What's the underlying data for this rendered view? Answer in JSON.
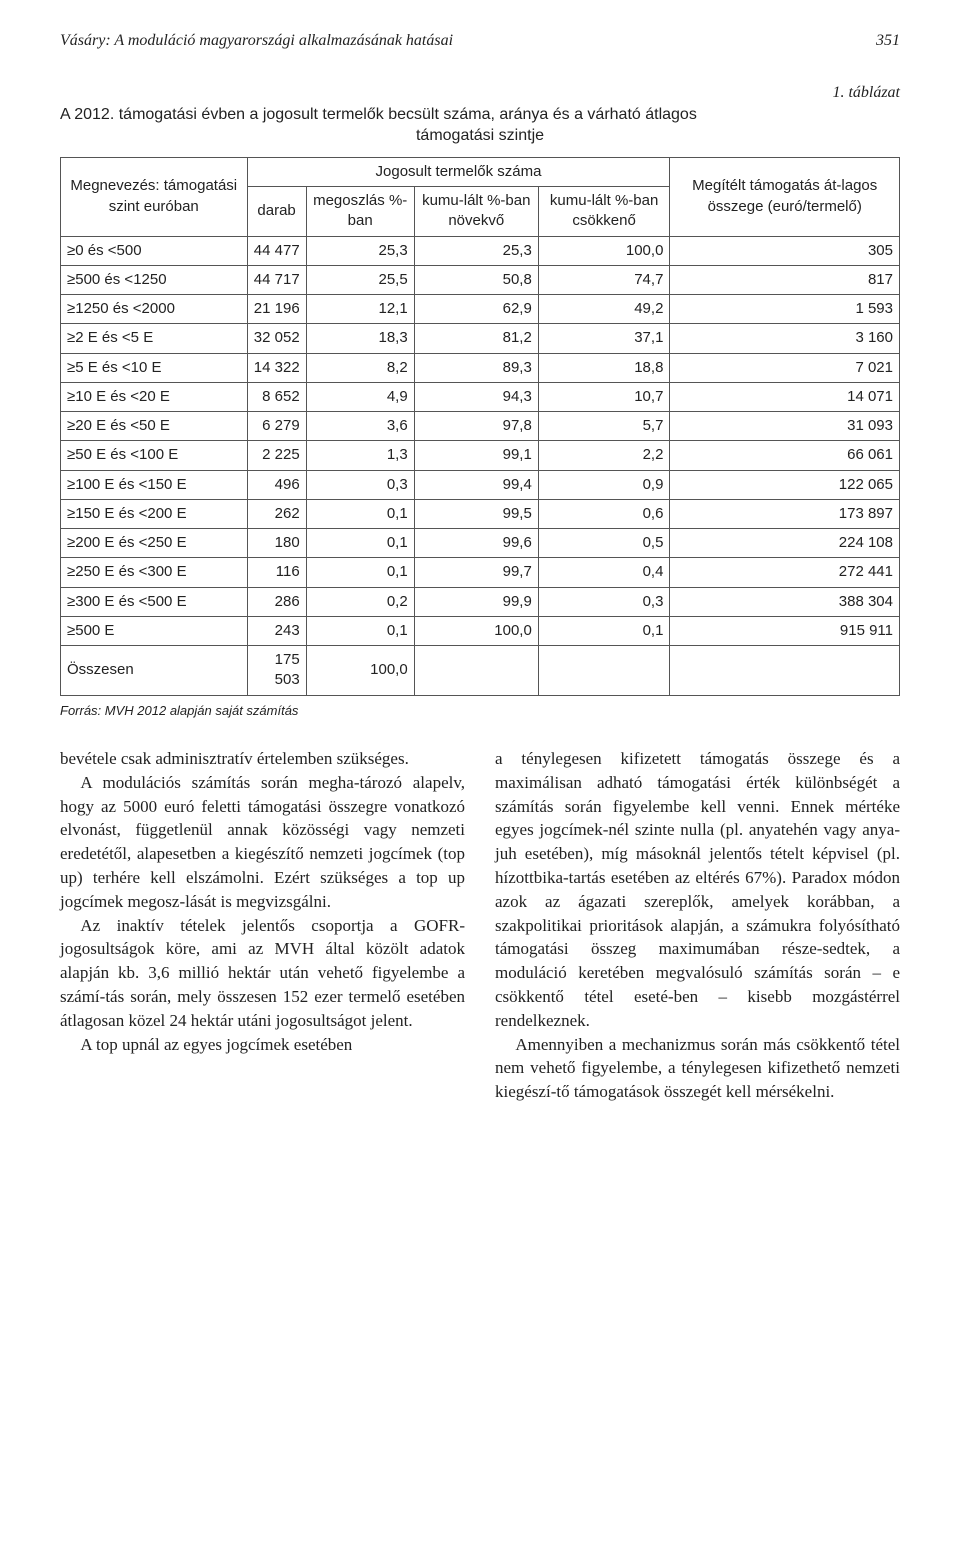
{
  "header": {
    "running_title": "Vásáry: A moduláció magyarországi alkalmazásának hatásai",
    "page_number": "351"
  },
  "table": {
    "label": "1. táblázat",
    "title_line1": "A 2012. támogatási évben a jogosult termelők becsült száma, aránya és a várható átlagos",
    "title_line2": "támogatási szintje",
    "head": {
      "col1": "Megnevezés: támogatási szint euróban",
      "group": "Jogosult termelők száma",
      "sub_darab": "darab",
      "sub_megoszlas": "megoszlás %-ban",
      "sub_kum_novekvo": "kumu-lált %-ban növekvő",
      "sub_kum_csokkeno": "kumu-lált %-ban csökkenő",
      "col_last": "Megítélt támogatás át-lagos összege (euró/termelő)"
    },
    "rows": [
      {
        "label": "≥0 és <500",
        "darab": "44 477",
        "pct": "25,3",
        "kumn": "25,3",
        "kumc": "100,0",
        "avg": "305"
      },
      {
        "label": "≥500 és <1250",
        "darab": "44 717",
        "pct": "25,5",
        "kumn": "50,8",
        "kumc": "74,7",
        "avg": "817"
      },
      {
        "label": "≥1250 és <2000",
        "darab": "21 196",
        "pct": "12,1",
        "kumn": "62,9",
        "kumc": "49,2",
        "avg": "1 593"
      },
      {
        "label": "≥2 E és <5 E",
        "darab": "32 052",
        "pct": "18,3",
        "kumn": "81,2",
        "kumc": "37,1",
        "avg": "3 160"
      },
      {
        "label": "≥5 E és <10 E",
        "darab": "14 322",
        "pct": "8,2",
        "kumn": "89,3",
        "kumc": "18,8",
        "avg": "7 021"
      },
      {
        "label": "≥10 E és <20 E",
        "darab": "8 652",
        "pct": "4,9",
        "kumn": "94,3",
        "kumc": "10,7",
        "avg": "14 071"
      },
      {
        "label": "≥20 E és <50 E",
        "darab": "6 279",
        "pct": "3,6",
        "kumn": "97,8",
        "kumc": "5,7",
        "avg": "31 093"
      },
      {
        "label": "≥50 E és <100 E",
        "darab": "2 225",
        "pct": "1,3",
        "kumn": "99,1",
        "kumc": "2,2",
        "avg": "66 061"
      },
      {
        "label": "≥100 E és <150 E",
        "darab": "496",
        "pct": "0,3",
        "kumn": "99,4",
        "kumc": "0,9",
        "avg": "122 065"
      },
      {
        "label": "≥150 E és <200 E",
        "darab": "262",
        "pct": "0,1",
        "kumn": "99,5",
        "kumc": "0,6",
        "avg": "173 897"
      },
      {
        "label": "≥200 E és <250 E",
        "darab": "180",
        "pct": "0,1",
        "kumn": "99,6",
        "kumc": "0,5",
        "avg": "224 108"
      },
      {
        "label": "≥250 E és <300 E",
        "darab": "116",
        "pct": "0,1",
        "kumn": "99,7",
        "kumc": "0,4",
        "avg": "272 441"
      },
      {
        "label": "≥300 E és <500 E",
        "darab": "286",
        "pct": "0,2",
        "kumn": "99,9",
        "kumc": "0,3",
        "avg": "388 304"
      },
      {
        "label": "≥500 E",
        "darab": "243",
        "pct": "0,1",
        "kumn": "100,0",
        "kumc": "0,1",
        "avg": "915 911"
      }
    ],
    "total": {
      "label": "Összesen",
      "darab": "175 503",
      "pct": "100,0",
      "kumn": "",
      "kumc": "",
      "avg": ""
    },
    "source": "Forrás: MVH 2012 alapján saját számítás"
  },
  "body": {
    "left": {
      "p1": "bevétele csak adminisztratív értelemben szükséges.",
      "p2": "A modulációs számítás során megha-tározó alapelv, hogy az 5000 euró feletti támogatási összegre vonatkozó elvonást, függetlenül annak közösségi vagy nemzeti eredetétől, alapesetben a kiegészítő nemzeti jogcímek (top up) terhére kell elszámolni. Ezért szükséges a top up jogcímek megosz-lását is megvizsgálni.",
      "p3": "Az inaktív tételek jelentős csoportja a GOFR-jogosultságok köre, ami az MVH által közölt adatok alapján kb. 3,6 millió hektár után vehető figyelembe a számí-tás során, mely összesen 152 ezer termelő esetében átlagosan közel 24 hektár utáni jogosultságot jelent.",
      "p4": "A top upnál az egyes jogcímek esetében"
    },
    "right": {
      "p1": "a ténylegesen kifizetett támogatás összege és a maximálisan adható támogatási érték különbségét a számítás során figyelembe kell venni. Ennek mértéke egyes jogcímek-nél szinte nulla (pl. anyatehén vagy anya-juh esetében), míg másoknál jelentős tételt képvisel (pl. hízottbika-tartás esetében az eltérés 67%). Paradox módon azok az ágazati szereplők, amelyek korábban, a szakpolitikai prioritások alapján, a számukra folyósítható támogatási összeg maximumában része-sedtek, a moduláció keretében megvalósuló számítás során – e csökkentő tétel eseté-ben – kisebb mozgástérrel rendelkeznek.",
      "p2": "Amennyiben a mechanizmus során más csökkentő tétel nem vehető figyelembe, a ténylegesen kifizethető nemzeti kiegészí-tő támogatások összegét kell mérsékelni."
    }
  }
}
